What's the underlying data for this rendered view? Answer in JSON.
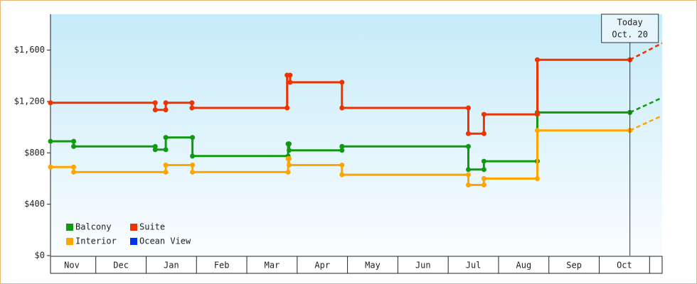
{
  "chart_data": {
    "type": "step-line",
    "categories": [
      "Nov",
      "Dec",
      "Jan",
      "Feb",
      "Mar",
      "Apr",
      "May",
      "Jun",
      "Jul",
      "Aug",
      "Sep",
      "Oct"
    ],
    "xlim": [
      0.1,
      12.25
    ],
    "ylim": [
      0,
      1880
    ],
    "yticks": [
      {
        "value": 0,
        "label": "$0"
      },
      {
        "value": 400,
        "label": "$400"
      },
      {
        "value": 800,
        "label": "$800"
      },
      {
        "value": 1200,
        "label": "$1,200"
      },
      {
        "value": 1600,
        "label": "$1,600"
      }
    ],
    "today": {
      "label": [
        "Today",
        "Oct. 20"
      ],
      "x": 11.61
    },
    "projection_x": 12.25,
    "series": [
      {
        "name": "Balcony",
        "color": "#119911",
        "x": [
          0.1,
          0.56,
          2.18,
          2.39,
          2.92,
          4.82,
          4.84,
          5.89,
          8.4,
          8.71,
          9.77,
          11.61
        ],
        "values": [
          890,
          850,
          825,
          920,
          775,
          870,
          820,
          850,
          670,
          735,
          1115,
          1115
        ],
        "projection": 1230
      },
      {
        "name": "Suite",
        "color": "#ee3300",
        "x": [
          0.1,
          2.18,
          2.39,
          2.91,
          4.8,
          4.86,
          5.89,
          8.4,
          8.71,
          9.77,
          11.61
        ],
        "values": [
          1190,
          1135,
          1190,
          1150,
          1405,
          1350,
          1150,
          950,
          1100,
          1525,
          1525
        ],
        "projection": 1655
      },
      {
        "name": "Interior",
        "color": "#ffa500",
        "x": [
          0.1,
          0.56,
          2.39,
          2.92,
          4.82,
          4.84,
          5.89,
          8.4,
          8.71,
          9.77,
          11.61
        ],
        "values": [
          690,
          650,
          705,
          650,
          755,
          705,
          630,
          550,
          600,
          975,
          975
        ],
        "projection": 1090
      },
      {
        "name": "Ocean View",
        "color": "#0033ee",
        "x": [],
        "values": []
      }
    ]
  }
}
